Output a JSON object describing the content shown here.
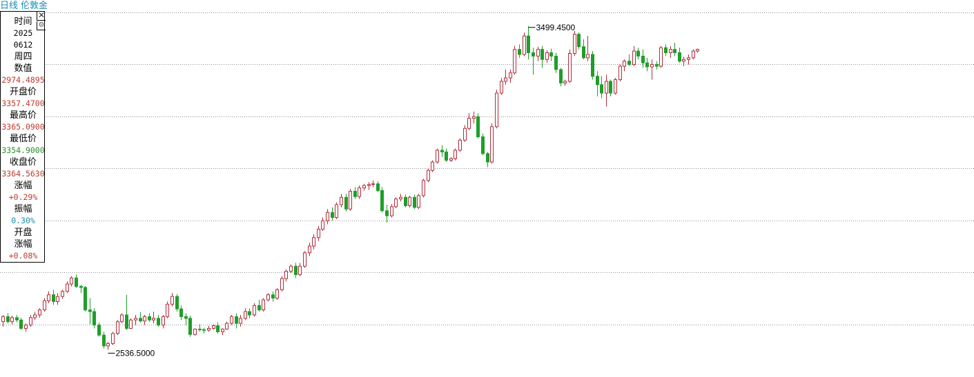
{
  "header": {
    "period": "日线",
    "name": "伦敦金"
  },
  "info_panel": {
    "close_icon": "close-icon",
    "gear_icon": "gear-icon",
    "rows": [
      {
        "text": "时间",
        "kind": "label"
      },
      {
        "text": "2025",
        "kind": "num",
        "color": "#000000"
      },
      {
        "text": "0612",
        "kind": "num",
        "color": "#000000"
      },
      {
        "text": "周四",
        "kind": "label"
      },
      {
        "text": "数值",
        "kind": "label"
      },
      {
        "text": "2974.4895",
        "kind": "num",
        "color": "#c0392b"
      },
      {
        "text": "开盘价",
        "kind": "label"
      },
      {
        "text": "3357.4700",
        "kind": "num",
        "color": "#c0392b"
      },
      {
        "text": "最高价",
        "kind": "label"
      },
      {
        "text": "3365.0900",
        "kind": "num",
        "color": "#c0392b"
      },
      {
        "text": "最低价",
        "kind": "label"
      },
      {
        "text": "3354.9000",
        "kind": "num",
        "color": "#2e8b2e"
      },
      {
        "text": "收盘价",
        "kind": "label"
      },
      {
        "text": "3364.5630",
        "kind": "num",
        "color": "#c0392b"
      },
      {
        "text": "涨幅",
        "kind": "label"
      },
      {
        "text": "+0.29%",
        "kind": "num",
        "color": "#c0392b"
      },
      {
        "text": "振幅",
        "kind": "label"
      },
      {
        "text": "0.30%",
        "kind": "num",
        "color": "#1a8cb0"
      },
      {
        "text": "开盘",
        "kind": "label"
      },
      {
        "text": "涨幅",
        "kind": "label"
      },
      {
        "text": "+0.08%",
        "kind": "num",
        "color": "#c0392b"
      }
    ]
  },
  "chart_data": {
    "type": "candlestick",
    "grid": true,
    "colors": {
      "up": "#b22b3a",
      "down": "#1f9e2a",
      "grid": "#8a8a8a"
    },
    "annotations": [
      {
        "text": "3499.4500",
        "kind": "max"
      },
      {
        "text": "2536.5000",
        "kind": "min"
      }
    ],
    "ylim": [
      2480,
      3540
    ],
    "candles": [
      [
        2620,
        2640,
        2605,
        2635
      ],
      [
        2635,
        2645,
        2615,
        2620
      ],
      [
        2620,
        2638,
        2612,
        2632
      ],
      [
        2632,
        2640,
        2618,
        2625
      ],
      [
        2625,
        2632,
        2595,
        2600
      ],
      [
        2600,
        2615,
        2590,
        2610
      ],
      [
        2610,
        2640,
        2605,
        2632
      ],
      [
        2632,
        2648,
        2625,
        2640
      ],
      [
        2640,
        2660,
        2632,
        2655
      ],
      [
        2655,
        2690,
        2650,
        2682
      ],
      [
        2682,
        2710,
        2675,
        2700
      ],
      [
        2700,
        2715,
        2670,
        2680
      ],
      [
        2680,
        2705,
        2670,
        2695
      ],
      [
        2695,
        2715,
        2688,
        2710
      ],
      [
        2710,
        2740,
        2705,
        2732
      ],
      [
        2732,
        2755,
        2725,
        2750
      ],
      [
        2750,
        2760,
        2720,
        2725
      ],
      [
        2725,
        2730,
        2705,
        2722
      ],
      [
        2722,
        2726,
        2650,
        2655
      ],
      [
        2655,
        2690,
        2612,
        2650
      ],
      [
        2650,
        2660,
        2600,
        2610
      ],
      [
        2610,
        2618,
        2575,
        2580
      ],
      [
        2580,
        2590,
        2540,
        2548
      ],
      [
        2548,
        2560,
        2536.5,
        2555
      ],
      [
        2555,
        2590,
        2550,
        2585
      ],
      [
        2585,
        2625,
        2580,
        2620
      ],
      [
        2620,
        2645,
        2615,
        2640
      ],
      [
        2640,
        2700,
        2595,
        2600
      ],
      [
        2600,
        2630,
        2598,
        2625
      ],
      [
        2625,
        2640,
        2610,
        2630
      ],
      [
        2630,
        2648,
        2618,
        2622
      ],
      [
        2622,
        2640,
        2610,
        2635
      ],
      [
        2635,
        2645,
        2620,
        2625
      ],
      [
        2625,
        2650,
        2615,
        2630
      ],
      [
        2630,
        2640,
        2605,
        2610
      ],
      [
        2610,
        2640,
        2600,
        2635
      ],
      [
        2635,
        2680,
        2630,
        2672
      ],
      [
        2672,
        2705,
        2665,
        2695
      ],
      [
        2695,
        2702,
        2650,
        2658
      ],
      [
        2658,
        2668,
        2625,
        2635
      ],
      [
        2635,
        2645,
        2610,
        2630
      ],
      [
        2630,
        2638,
        2575,
        2582
      ],
      [
        2582,
        2600,
        2578,
        2598
      ],
      [
        2598,
        2612,
        2590,
        2596
      ],
      [
        2596,
        2602,
        2585,
        2595
      ],
      [
        2595,
        2608,
        2590,
        2600
      ],
      [
        2600,
        2612,
        2596,
        2608
      ],
      [
        2608,
        2618,
        2585,
        2590
      ],
      [
        2590,
        2600,
        2580,
        2598
      ],
      [
        2598,
        2620,
        2596,
        2615
      ],
      [
        2615,
        2640,
        2610,
        2635
      ],
      [
        2635,
        2645,
        2600,
        2615
      ],
      [
        2615,
        2640,
        2605,
        2630
      ],
      [
        2630,
        2660,
        2625,
        2650
      ],
      [
        2650,
        2660,
        2630,
        2640
      ],
      [
        2640,
        2675,
        2635,
        2668
      ],
      [
        2668,
        2685,
        2650,
        2655
      ],
      [
        2655,
        2690,
        2650,
        2685
      ],
      [
        2685,
        2705,
        2680,
        2700
      ],
      [
        2700,
        2710,
        2680,
        2690
      ],
      [
        2690,
        2720,
        2685,
        2715
      ],
      [
        2715,
        2755,
        2710,
        2748
      ],
      [
        2748,
        2775,
        2740,
        2770
      ],
      [
        2770,
        2790,
        2765,
        2785
      ],
      [
        2785,
        2795,
        2750,
        2760
      ],
      [
        2760,
        2795,
        2755,
        2785
      ],
      [
        2785,
        2830,
        2780,
        2825
      ],
      [
        2825,
        2855,
        2815,
        2845
      ],
      [
        2845,
        2880,
        2835,
        2870
      ],
      [
        2870,
        2905,
        2860,
        2895
      ],
      [
        2895,
        2930,
        2890,
        2920
      ],
      [
        2920,
        2955,
        2910,
        2945
      ],
      [
        2945,
        2960,
        2920,
        2930
      ],
      [
        2930,
        2975,
        2925,
        2968
      ],
      [
        2968,
        3000,
        2960,
        2990
      ],
      [
        2990,
        3000,
        2948,
        2955
      ],
      [
        2955,
        3015,
        2950,
        3008
      ],
      [
        3008,
        3020,
        2985,
        2992
      ],
      [
        2992,
        3025,
        2985,
        3018
      ],
      [
        3018,
        3030,
        3010,
        3025
      ],
      [
        3025,
        3035,
        3012,
        3028
      ],
      [
        3028,
        3040,
        3020,
        3030
      ],
      [
        3030,
        3038,
        3005,
        3010
      ],
      [
        3010,
        3020,
        2945,
        2950
      ],
      [
        2950,
        2968,
        2915,
        2935
      ],
      [
        2935,
        2970,
        2930,
        2962
      ],
      [
        2962,
        2990,
        2958,
        2985
      ],
      [
        2985,
        3000,
        2978,
        2990
      ],
      [
        2990,
        2998,
        2960,
        2965
      ],
      [
        2965,
        2995,
        2960,
        2990
      ],
      [
        2990,
        2998,
        2955,
        2960
      ],
      [
        2960,
        3000,
        2955,
        2995
      ],
      [
        2995,
        3045,
        2990,
        3040
      ],
      [
        3040,
        3075,
        3035,
        3070
      ],
      [
        3070,
        3100,
        3065,
        3095
      ],
      [
        3095,
        3135,
        3090,
        3130
      ],
      [
        3130,
        3145,
        3110,
        3125
      ],
      [
        3125,
        3135,
        3095,
        3100
      ],
      [
        3100,
        3110,
        3095,
        3105
      ],
      [
        3105,
        3135,
        3100,
        3130
      ],
      [
        3130,
        3165,
        3125,
        3160
      ],
      [
        3160,
        3205,
        3155,
        3195
      ],
      [
        3195,
        3240,
        3190,
        3225
      ],
      [
        3225,
        3245,
        3210,
        3230
      ],
      [
        3230,
        3240,
        3165,
        3170
      ],
      [
        3170,
        3180,
        3115,
        3120
      ],
      [
        3120,
        3125,
        3080,
        3095
      ],
      [
        3095,
        3210,
        3090,
        3200
      ],
      [
        3200,
        3310,
        3195,
        3300
      ],
      [
        3300,
        3345,
        3295,
        3335
      ],
      [
        3335,
        3370,
        3325,
        3345
      ],
      [
        3345,
        3370,
        3330,
        3360
      ],
      [
        3360,
        3440,
        3355,
        3430
      ],
      [
        3430,
        3445,
        3405,
        3415
      ],
      [
        3415,
        3480,
        3410,
        3470
      ],
      [
        3470,
        3499.45,
        3400,
        3420
      ],
      [
        3420,
        3435,
        3355,
        3410
      ],
      [
        3410,
        3438,
        3395,
        3430
      ],
      [
        3430,
        3440,
        3375,
        3400
      ],
      [
        3400,
        3428,
        3390,
        3420
      ],
      [
        3420,
        3432,
        3395,
        3410
      ],
      [
        3410,
        3420,
        3360,
        3370
      ],
      [
        3370,
        3375,
        3320,
        3330
      ],
      [
        3330,
        3340,
        3322,
        3335
      ],
      [
        3335,
        3430,
        3330,
        3418
      ],
      [
        3418,
        3485,
        3410,
        3475
      ],
      [
        3475,
        3480,
        3430,
        3438
      ],
      [
        3438,
        3460,
        3400,
        3405
      ],
      [
        3405,
        3470,
        3395,
        3415
      ],
      [
        3415,
        3425,
        3340,
        3350
      ],
      [
        3350,
        3365,
        3290,
        3325
      ],
      [
        3325,
        3350,
        3285,
        3300
      ],
      [
        3300,
        3355,
        3260,
        3335
      ],
      [
        3335,
        3340,
        3290,
        3300
      ],
      [
        3300,
        3345,
        3295,
        3340
      ],
      [
        3340,
        3385,
        3335,
        3380
      ],
      [
        3380,
        3400,
        3365,
        3395
      ],
      [
        3395,
        3415,
        3380,
        3385
      ],
      [
        3385,
        3440,
        3380,
        3425
      ],
      [
        3425,
        3435,
        3400,
        3410
      ],
      [
        3410,
        3430,
        3375,
        3390
      ],
      [
        3390,
        3405,
        3365,
        3378
      ],
      [
        3378,
        3400,
        3340,
        3385
      ],
      [
        3385,
        3395,
        3370,
        3380
      ],
      [
        3380,
        3440,
        3375,
        3435
      ],
      [
        3435,
        3445,
        3410,
        3420
      ],
      [
        3420,
        3440,
        3405,
        3430
      ],
      [
        3430,
        3450,
        3410,
        3420
      ],
      [
        3420,
        3435,
        3390,
        3395
      ],
      [
        3395,
        3408,
        3380,
        3400
      ],
      [
        3400,
        3415,
        3385,
        3405
      ],
      [
        3405,
        3430,
        3400,
        3425
      ],
      [
        3425,
        3432,
        3420,
        3430
      ]
    ]
  }
}
